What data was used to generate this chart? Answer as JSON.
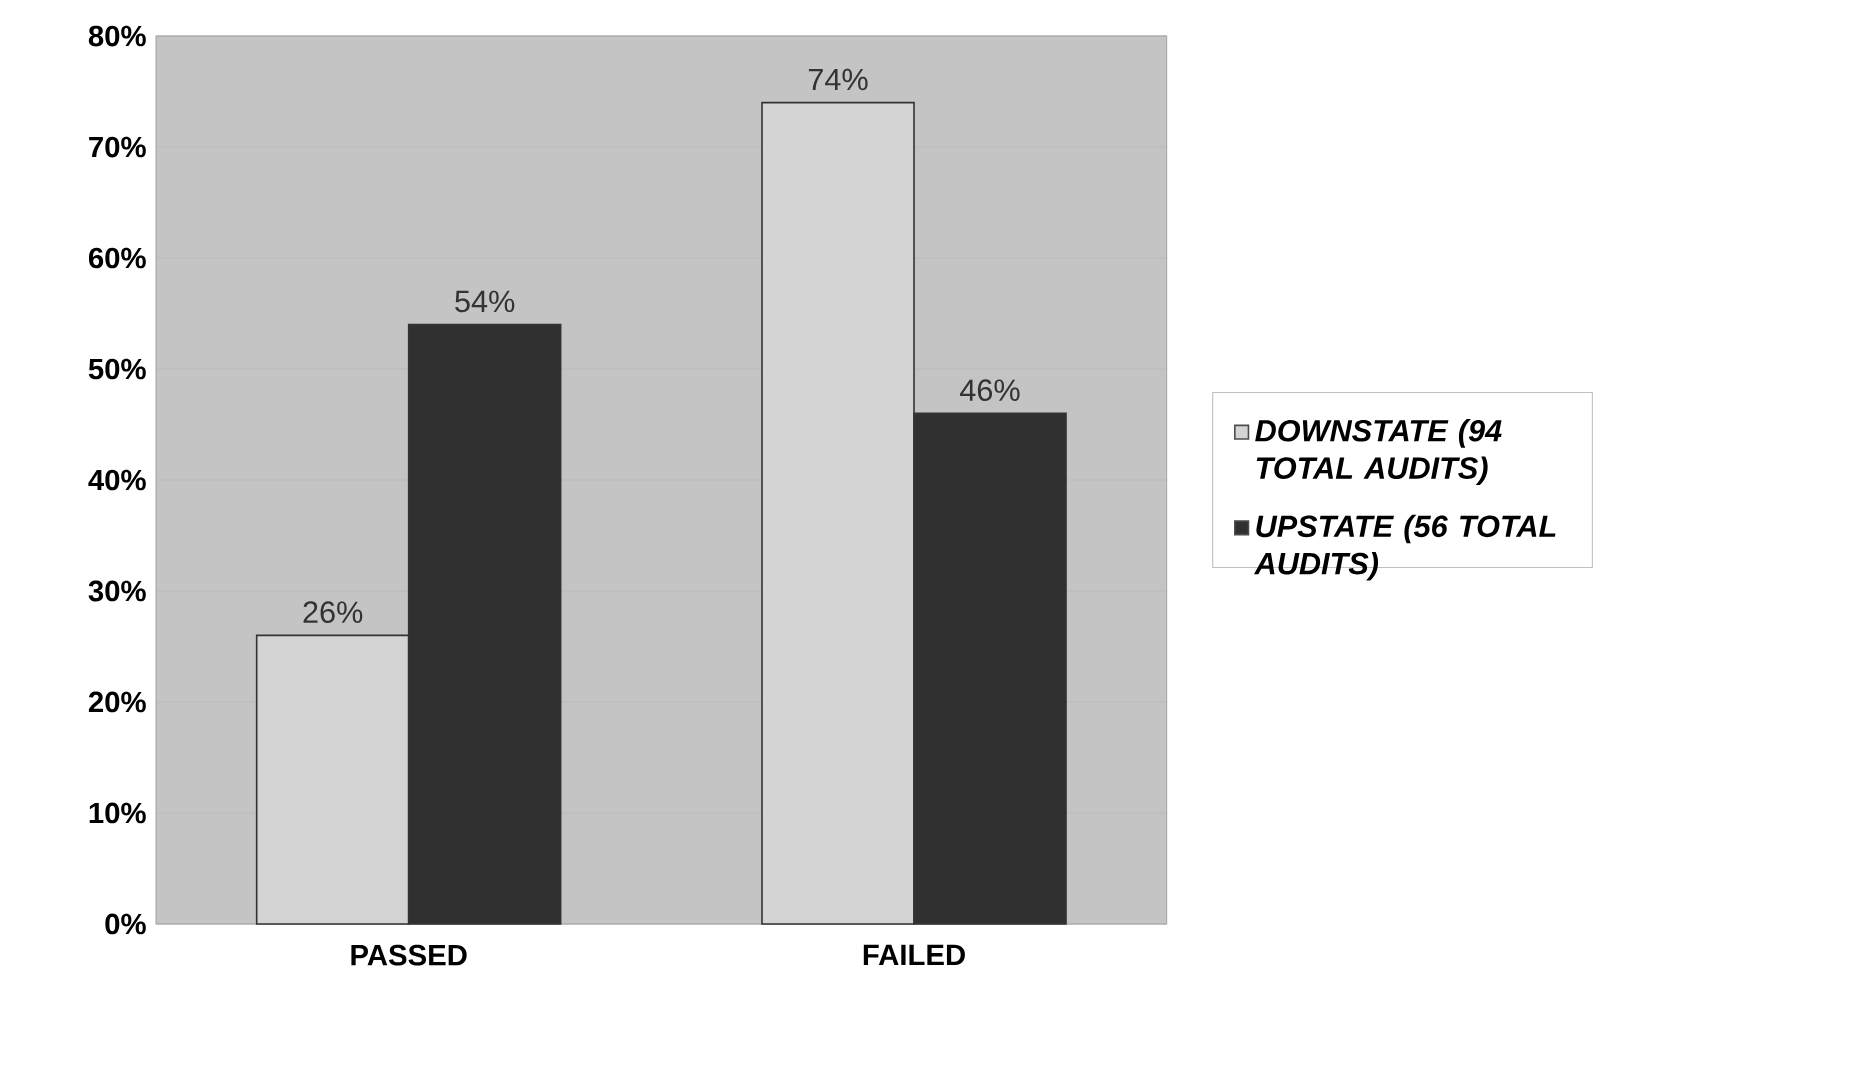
{
  "chart_data": {
    "type": "bar",
    "categories": [
      "PASSED",
      "FAILED"
    ],
    "series": [
      {
        "name": "DOWNSTATE (94 TOTAL AUDITS)",
        "color": "#d4d4d4",
        "values": [
          26,
          74
        ],
        "value_labels": [
          "26%",
          "74%"
        ]
      },
      {
        "name": "UPSTATE (56 TOTAL AUDITS)",
        "color": "#303030",
        "values": [
          54,
          46
        ],
        "value_labels": [
          "54%",
          "46%"
        ]
      }
    ],
    "ylim": [
      0,
      80
    ],
    "yticks": [
      {
        "value": 0,
        "label": "0%"
      },
      {
        "value": 10,
        "label": "10%"
      },
      {
        "value": 20,
        "label": "20%"
      },
      {
        "value": 30,
        "label": "30%"
      },
      {
        "value": 40,
        "label": "40%"
      },
      {
        "value": 50,
        "label": "50%"
      },
      {
        "value": 60,
        "label": "60%"
      },
      {
        "value": 70,
        "label": "70%"
      },
      {
        "value": 80,
        "label": "80%"
      }
    ],
    "grid": "y",
    "legend": "right"
  }
}
